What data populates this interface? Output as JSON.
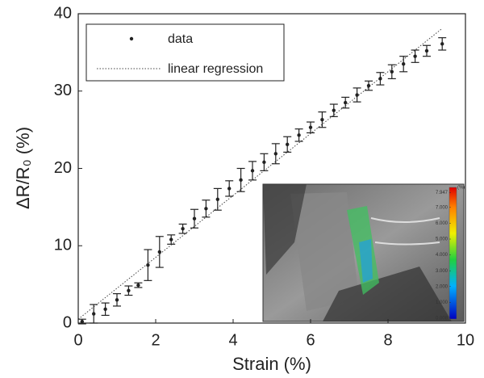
{
  "chart_data": {
    "type": "scatter",
    "xlabel": "Strain (%)",
    "ylabel": "ΔR/R₀ (%)",
    "xlim": [
      0,
      10
    ],
    "ylim": [
      0,
      40
    ],
    "xticks": [
      0,
      2,
      4,
      6,
      8,
      10
    ],
    "yticks": [
      0,
      10,
      20,
      30,
      40
    ],
    "legend": "upper left",
    "series": [
      {
        "name": "data",
        "color": "#222222",
        "x": [
          0.1,
          0.4,
          0.7,
          1.0,
          1.3,
          1.55,
          1.8,
          2.1,
          2.4,
          2.7,
          3.0,
          3.3,
          3.6,
          3.9,
          4.2,
          4.5,
          4.8,
          5.1,
          5.4,
          5.7,
          6.0,
          6.3,
          6.6,
          6.9,
          7.2,
          7.5,
          7.8,
          8.1,
          8.4,
          8.7,
          9.0,
          9.4
        ],
        "values": [
          0.2,
          1.2,
          1.8,
          3.0,
          4.2,
          4.9,
          7.5,
          9.2,
          10.8,
          12.2,
          13.5,
          14.8,
          16.0,
          17.4,
          18.5,
          19.7,
          20.8,
          21.9,
          23.1,
          24.3,
          25.3,
          26.3,
          27.5,
          28.5,
          29.5,
          30.7,
          31.6,
          32.5,
          33.5,
          34.5,
          35.2,
          36.1
        ],
        "errors": [
          0.3,
          1.2,
          0.8,
          0.8,
          0.6,
          0.3,
          2.0,
          2.0,
          0.6,
          0.6,
          1.2,
          1.1,
          1.4,
          1.0,
          1.5,
          1.2,
          1.1,
          1.3,
          1.0,
          0.8,
          0.7,
          1.0,
          0.8,
          0.7,
          0.9,
          0.6,
          0.8,
          0.9,
          1.0,
          0.8,
          0.7,
          0.8
        ]
      },
      {
        "name": "linear regression",
        "color": "#444444",
        "x": [
          0,
          9.4
        ],
        "values": [
          0.5,
          38.1
        ]
      }
    ],
    "inset_colorbar": {
      "unit": "(%)",
      "ticks": [
        7.947,
        {
          "value": 7,
          "label": "7.000"
        },
        {
          "value": 6,
          "label": "6.000"
        },
        {
          "value": 5,
          "label": "5.000"
        },
        {
          "value": 4,
          "label": "4.000"
        },
        {
          "value": 3,
          "label": "3.000"
        },
        {
          "value": 2,
          "label": "2.000"
        },
        {
          "value": 1,
          "label": "1.000"
        },
        0.008
      ]
    }
  }
}
